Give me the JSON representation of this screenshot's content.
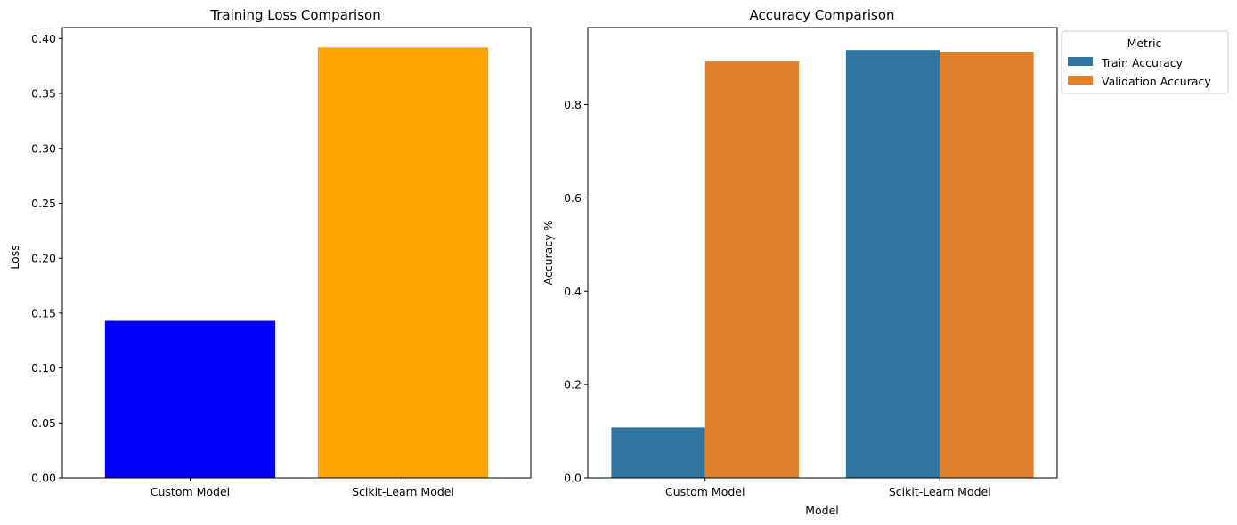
{
  "chart_data": [
    {
      "type": "bar",
      "title": "Training Loss Comparison",
      "xlabel": "",
      "ylabel": "Loss",
      "categories": [
        "Custom Model",
        "Scikit-Learn Model"
      ],
      "values": [
        0.143,
        0.392
      ],
      "colors": [
        "#0000ff",
        "#ffa500"
      ],
      "ylim": [
        0,
        0.41
      ],
      "yticks": [
        0.0,
        0.05,
        0.1,
        0.15,
        0.2,
        0.25,
        0.3,
        0.35,
        0.4
      ],
      "ytick_labels": [
        "0.00",
        "0.05",
        "0.10",
        "0.15",
        "0.20",
        "0.25",
        "0.30",
        "0.35",
        "0.40"
      ],
      "grid": false
    },
    {
      "type": "bar",
      "title": "Accuracy Comparison",
      "xlabel": "Model",
      "ylabel": "Accuracy %",
      "categories": [
        "Custom Model",
        "Scikit-Learn Model"
      ],
      "series": [
        {
          "name": "Train Accuracy",
          "values": [
            0.108,
            0.917
          ],
          "color": "#3274a1"
        },
        {
          "name": "Validation Accuracy",
          "values": [
            0.893,
            0.912
          ],
          "color": "#e1812c"
        }
      ],
      "ylim": [
        0,
        0.965
      ],
      "yticks": [
        0.0,
        0.2,
        0.4,
        0.6,
        0.8
      ],
      "ytick_labels": [
        "0.0",
        "0.2",
        "0.4",
        "0.6",
        "0.8"
      ],
      "legend_title": "Metric",
      "legend_position": "upper-right-outside",
      "grid": false
    }
  ]
}
